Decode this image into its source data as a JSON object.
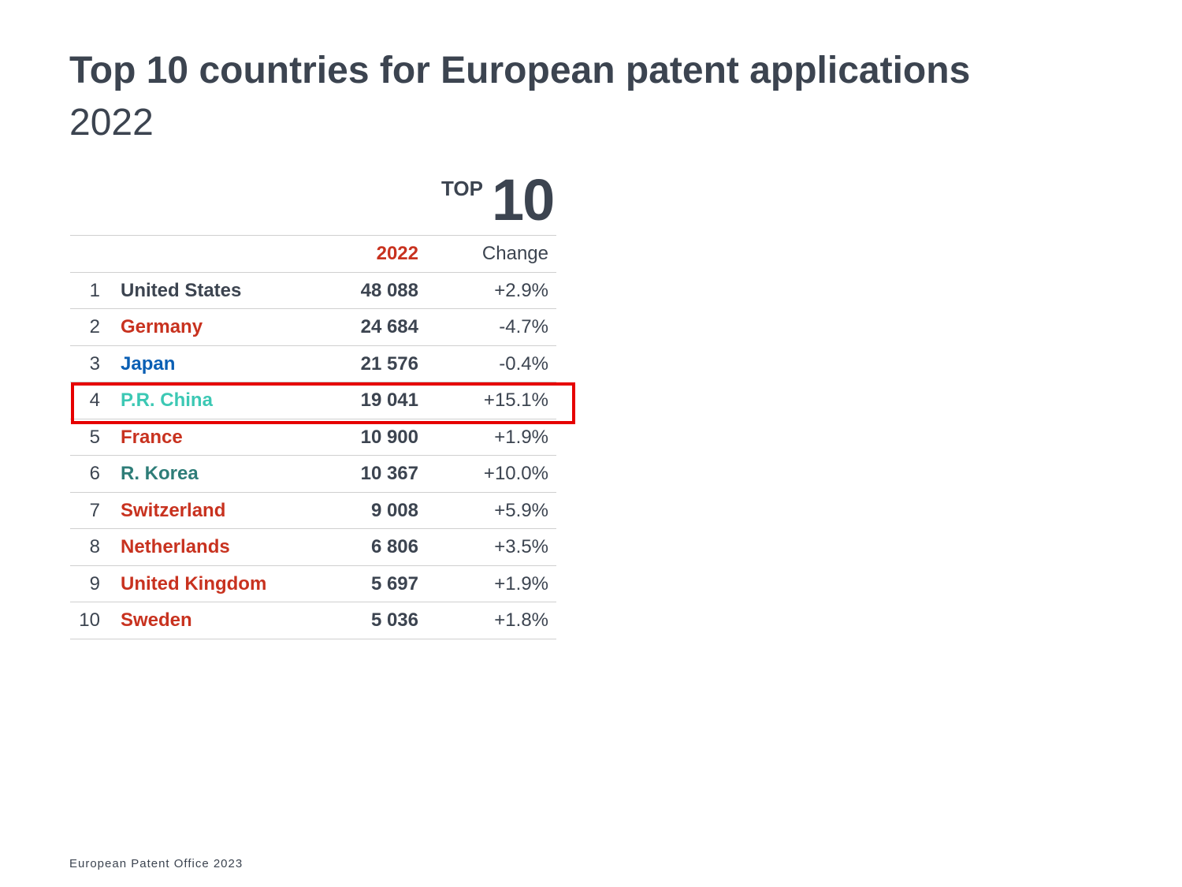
{
  "header": {
    "title": "Top 10 countries for European patent applications",
    "subtitle": "2022"
  },
  "badge": {
    "top": "TOP",
    "num": "10"
  },
  "chart_data": {
    "type": "table",
    "columns": [
      "",
      "",
      "2022",
      "Change"
    ],
    "rows": [
      {
        "rank": "1",
        "country": "United States",
        "value": "48 088",
        "change": "+2.9%",
        "color": "#3c4450"
      },
      {
        "rank": "2",
        "country": "Germany",
        "value": "24 684",
        "change": "-4.7%",
        "color": "#c8321f"
      },
      {
        "rank": "3",
        "country": "Japan",
        "value": "21 576",
        "change": "-0.4%",
        "color": "#0a5fb4"
      },
      {
        "rank": "4",
        "country": "P.R. China",
        "value": "19 041",
        "change": "+15.1%",
        "color": "#3cc8b4"
      },
      {
        "rank": "5",
        "country": "France",
        "value": "10 900",
        "change": "+1.9%",
        "color": "#c8321f"
      },
      {
        "rank": "6",
        "country": "R. Korea",
        "value": "10 367",
        "change": "+10.0%",
        "color": "#2e7d78"
      },
      {
        "rank": "7",
        "country": "Switzerland",
        "value": "9 008",
        "change": "+5.9%",
        "color": "#c8321f"
      },
      {
        "rank": "8",
        "country": "Netherlands",
        "value": "6 806",
        "change": "+3.5%",
        "color": "#c8321f"
      },
      {
        "rank": "9",
        "country": "United Kingdom",
        "value": "5 697",
        "change": "+1.9%",
        "color": "#c8321f"
      },
      {
        "rank": "10",
        "country": "Sweden",
        "value": "5 036",
        "change": "+1.8%",
        "color": "#c8321f"
      }
    ],
    "highlighted_rank": "4",
    "highlight_color": "#e60000"
  },
  "footer": {
    "text": "European Patent Office 2023"
  }
}
